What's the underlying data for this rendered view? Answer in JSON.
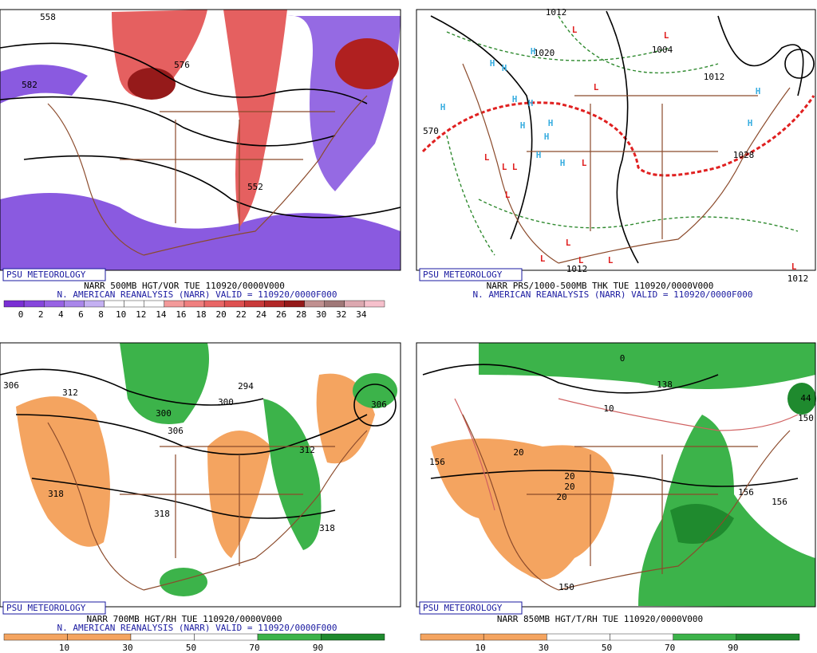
{
  "panels": [
    {
      "credit": "PSU METEOROLOGY",
      "title": "NARR 500MB HGT/VOR TUE 110920/0000V000",
      "subtitle": "N. AMERICAN REANALYSIS (NARR) VALID = 110920/0000F000",
      "colorbar": {
        "ticks": [
          0,
          2,
          4,
          6,
          8,
          10,
          12,
          14,
          16,
          18,
          20,
          22,
          24,
          26,
          28,
          30,
          32,
          34
        ],
        "colors": [
          "#7a2fd4",
          "#8646dc",
          "#9862e4",
          "#a986ea",
          "#c4b0f2",
          "#ffffff",
          "#ffffff",
          "#ffffff",
          "#f39a9a",
          "#f07f7f",
          "#e96666",
          "#de5050",
          "#c93a3a",
          "#b22828",
          "#951a1a",
          "#c09090",
          "#a07878",
          "#dca8b0",
          "#f6c0cc"
        ]
      },
      "labels": [
        "558",
        "582",
        "576",
        "552"
      ]
    },
    {
      "credit": "PSU METEOROLOGY",
      "title": "NARR PRS/1000-500MB THK TUE 110920/0000V000",
      "subtitle": "N. AMERICAN REANALYSIS (NARR) VALID = 110920/0000F000",
      "labels": [
        "1012",
        "1004",
        "1020",
        "1012",
        "1028",
        "570",
        "1012",
        "1012",
        "H",
        "H",
        "H",
        "H",
        "H",
        "H",
        "H",
        "H",
        "H",
        "H",
        "H",
        "H",
        "H",
        "L",
        "L",
        "L",
        "L",
        "L",
        "L",
        "L",
        "L",
        "L",
        "L",
        "L",
        "L",
        "L"
      ]
    },
    {
      "credit": "PSU METEOROLOGY",
      "title": "NARR 700MB HGT/RH TUE 110920/0000V000",
      "subtitle": "N. AMERICAN REANALYSIS (NARR) VALID = 110920/0000F000",
      "colorbar": {
        "ticks": [
          10,
          30,
          50,
          70,
          90
        ],
        "colors": [
          "#f4a460",
          "#f4a460",
          "#ffffff",
          "#ffffff",
          "#3cb34a",
          "#1f8a2e"
        ]
      },
      "labels": [
        "312",
        "306",
        "300",
        "306",
        "300",
        "294",
        "306",
        "312",
        "318",
        "318",
        "318"
      ]
    },
    {
      "credit": "PSU METEOROLOGY",
      "title": "NARR 850MB HGT/T/RH TUE 110920/0000V000",
      "colorbar": {
        "ticks": [
          10,
          30,
          50,
          70,
          90
        ],
        "colors": [
          "#f4a460",
          "#f4a460",
          "#ffffff",
          "#ffffff",
          "#3cb34a",
          "#1f8a2e"
        ]
      },
      "labels": [
        "156",
        "138",
        "0",
        "10",
        "20",
        "20",
        "20",
        "20",
        "156",
        "156",
        "150",
        "44",
        "150"
      ]
    }
  ]
}
